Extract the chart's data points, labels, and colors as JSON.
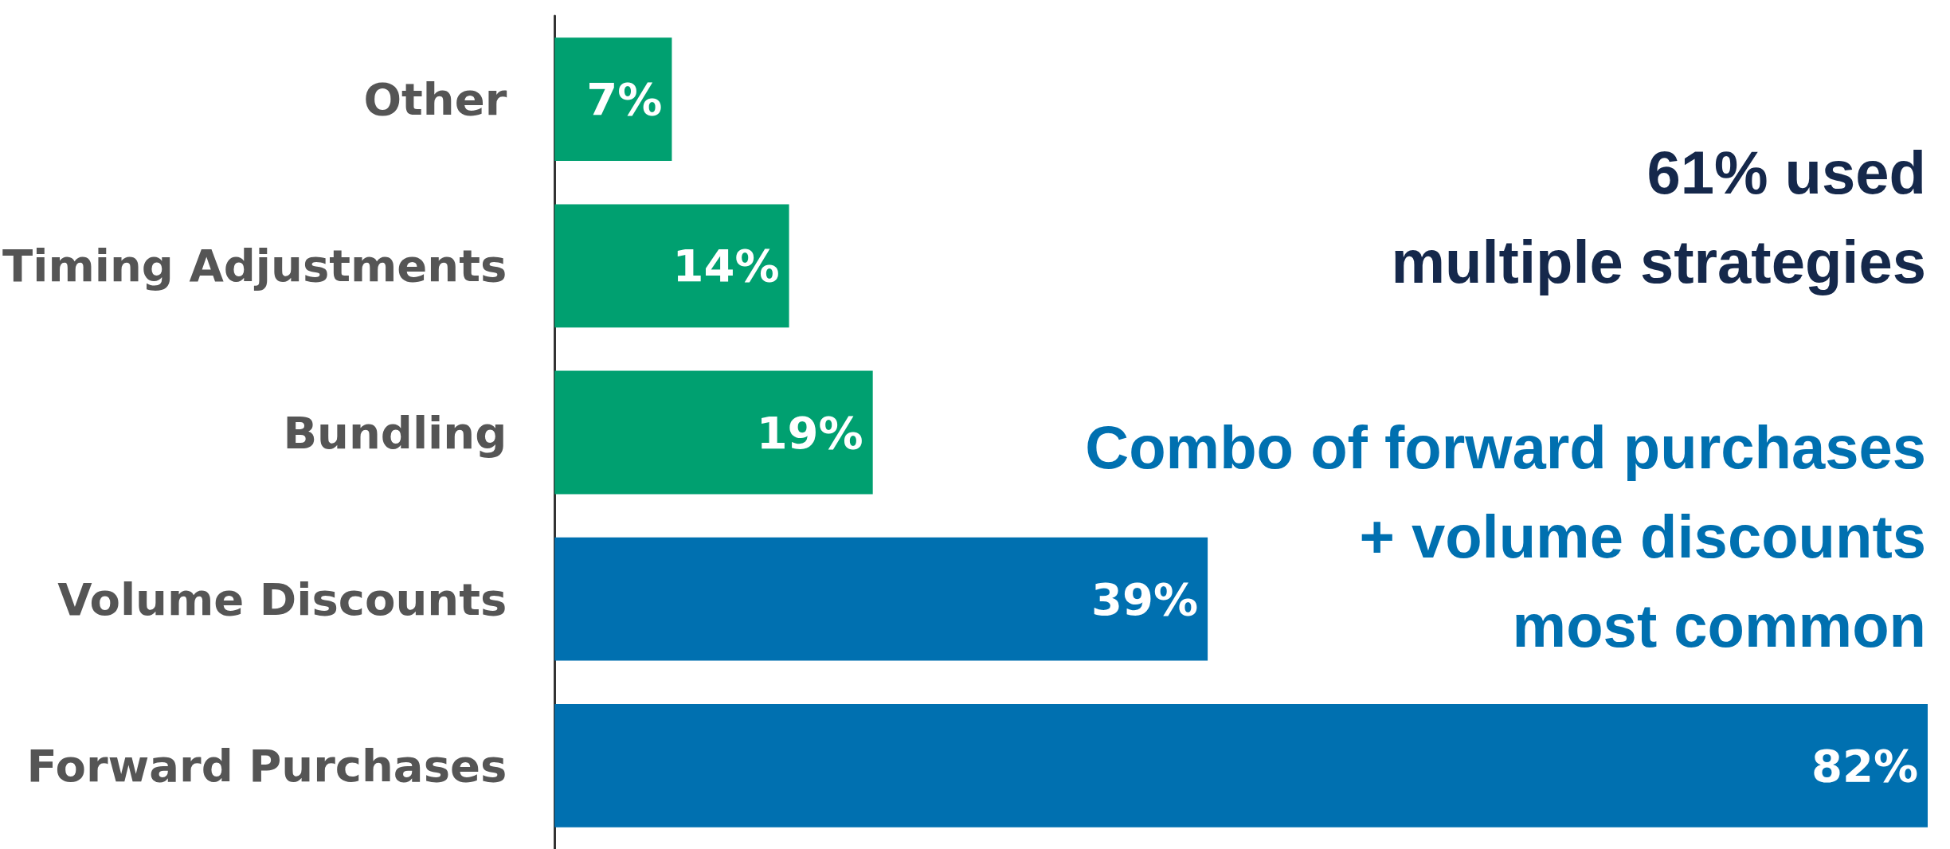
{
  "chart_data": {
    "type": "bar",
    "orientation": "horizontal",
    "categories": [
      "Other",
      "Timing Adjustments",
      "Bundling",
      "Volume Discounts",
      "Forward Purchases"
    ],
    "values": [
      7,
      14,
      19,
      39,
      82
    ],
    "value_labels": [
      "7%",
      "14%",
      "19%",
      "39%",
      "82%"
    ],
    "colors": [
      "#00a070",
      "#00a070",
      "#00a070",
      "#0070b0",
      "#0070b0"
    ],
    "xlim": [
      0,
      82
    ],
    "tick_labels": "y",
    "annotations": [
      "61% used\nmultiple strategies",
      "Combo of forward purchases\n+ volume discounts\nmost common"
    ]
  }
}
